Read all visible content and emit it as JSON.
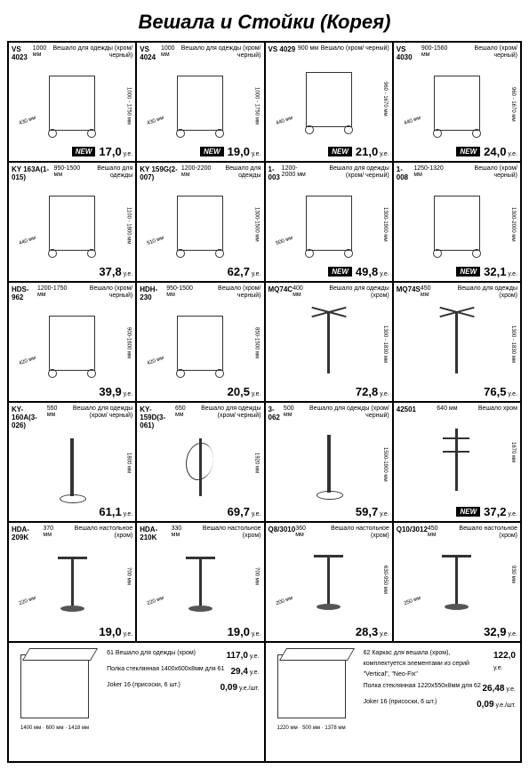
{
  "title": "Вешала и Стойки (Корея)",
  "unit": "у.е.",
  "new_label": "NEW",
  "rows": [
    [
      {
        "sku": "VS 4023",
        "top": "1000 мм",
        "desc": "Вешало для одежды (хром/ черный)",
        "v": "1000 - 1750 мм",
        "b": "430 мм",
        "new": true,
        "price": "17,0",
        "shape": "rack"
      },
      {
        "sku": "VS 4024",
        "top": "1000 мм",
        "desc": "Вешало для одежды (хром/ черный)",
        "v": "1000 - 1750 мм",
        "b": "430 мм",
        "new": true,
        "price": "19,0",
        "shape": "rack"
      },
      {
        "sku": "VS 4029",
        "top": "900 мм",
        "desc": "Вешало (хром/ черный)",
        "v": "960 - 1670 мм",
        "b": "440 мм",
        "new": true,
        "price": "21,0",
        "shape": "rack"
      },
      {
        "sku": "VS 4030",
        "top": "900-1560 мм",
        "desc": "Вешало (хром/ черный)",
        "v": "960 - 1670 мм",
        "b": "440 мм",
        "new": true,
        "price": "24,0",
        "shape": "rack"
      }
    ],
    [
      {
        "sku": "KY 163A(1-015)",
        "top": "950-1500 мм",
        "desc": "Вешало для одежды",
        "v": "1100 - 1800 мм",
        "b": "440 мм",
        "new": false,
        "price": "37,8",
        "shape": "rack"
      },
      {
        "sku": "KY 159G(2-007)",
        "top": "1200-2200 мм",
        "desc": "Вешало для одежды",
        "v": "1300-1500 мм",
        "b": "510 мм",
        "new": false,
        "price": "62,7",
        "shape": "rack"
      },
      {
        "sku": "1-003",
        "top": "1200-2000 мм",
        "desc": "Вешало для одежды (хром/ черный)",
        "v": "1300-1900 мм",
        "b": "500 мм",
        "new": true,
        "price": "49,8",
        "shape": "rack"
      },
      {
        "sku": "1-008",
        "top": "1250-1320 мм",
        "desc": "Вешало (хром/ черный)",
        "v": "1300-2000 мм",
        "b": "",
        "new": true,
        "price": "32,1",
        "shape": "rack"
      }
    ],
    [
      {
        "sku": "HDS-962",
        "top": "1200-1750 мм",
        "desc": "Вешало (хром/ черный)",
        "v": "900-1600 мм",
        "b": "420 мм",
        "new": false,
        "price": "39,9",
        "shape": "rack"
      },
      {
        "sku": "HDH-230",
        "top": "950-1500 мм",
        "desc": "Вешало (хром/ черный)",
        "v": "850-1500 мм",
        "b": "420 мм",
        "new": false,
        "price": "20,5",
        "shape": "rack"
      },
      {
        "sku": "MQ74C",
        "top": "400 мм",
        "desc": "Вешало для одежды (хром)",
        "v": "1300 - 1830 мм",
        "b": "",
        "new": false,
        "price": "72,8",
        "shape": "cross"
      },
      {
        "sku": "MQ74S",
        "top": "450 мм",
        "desc": "Вешало для одежды (хром)",
        "v": "1300 - 1830 мм",
        "b": "",
        "new": false,
        "price": "76,5",
        "shape": "cross"
      }
    ],
    [
      {
        "sku": "KY-160A(3-026)",
        "top": "550 мм",
        "desc": "Вешало для одежды (хром/ черный)",
        "v": "1800 мм",
        "b": "",
        "new": false,
        "price": "61,1",
        "shape": "stand"
      },
      {
        "sku": "KY-159D(3-061)",
        "top": "650 мм",
        "desc": "Вешало для одежды (хром/ черный)",
        "v": "1920 мм",
        "b": "",
        "new": false,
        "price": "69,7",
        "shape": "spiral"
      },
      {
        "sku": "3-062",
        "top": "500 мм",
        "desc": "Вешало для одежды (хром/черный)",
        "v": "1500-1900 мм",
        "b": "",
        "new": false,
        "price": "59,7",
        "shape": "stand"
      },
      {
        "sku": "42501",
        "top": "640 мм",
        "desc": "Вешало хром",
        "v": "1670 мм",
        "b": "",
        "new": true,
        "price": "37,2",
        "shape": "shelf"
      }
    ],
    [
      {
        "sku": "HDA-209K",
        "top": "370 мм",
        "desc": "Вешало настольное (хром)",
        "v": "700 мм",
        "b": "220 мм",
        "new": false,
        "price": "19,0",
        "shape": "table-top"
      },
      {
        "sku": "HDA-210K",
        "top": "330 мм",
        "desc": "Вешало настольное (хром)",
        "v": "700 мм",
        "b": "220 мм",
        "new": false,
        "price": "19,0",
        "shape": "table-top"
      },
      {
        "sku": "Q8/3010",
        "top": "360 мм",
        "desc": "Вешало настольное (хром)",
        "v": "630-950 мм",
        "b": "200 мм",
        "new": false,
        "price": "28,3",
        "shape": "table-top"
      },
      {
        "sku": "Q10/3012",
        "top": "450 мм",
        "desc": "Вешало настольное (хром)",
        "v": "930 мм",
        "b": "250 мм",
        "new": false,
        "price": "32,9",
        "shape": "table-top"
      }
    ]
  ],
  "bottom": [
    {
      "sku": "61",
      "dims": "1400 мм · 600 мм · 1418 мм",
      "lines": [
        {
          "l": "61 Вешало для одежды (хром)",
          "p": "117,0"
        },
        {
          "l": "Полка стеклянная 1400x600x8мм для 61",
          "p": "29,4"
        },
        {
          "l": "Joker 16 (присоски, 6 шт.)",
          "p": "0,09",
          "suf": "у.е./шт."
        }
      ]
    },
    {
      "sku": "62",
      "dims": "1220 мм · 500 мм · 1378 мм",
      "lines": [
        {
          "l": "62 Каркас для вешала (хром), комплектуется элементами из серий \"Vertical\", \"Neo-Fix\"",
          "p": "122,0"
        },
        {
          "l": "Полка стеклянная 1220x550x8мм для 62",
          "p": "26,48"
        },
        {
          "l": "Joker 16 (присоски, 6 шт.)",
          "p": "0,09",
          "suf": "у.е./шт."
        }
      ]
    }
  ]
}
